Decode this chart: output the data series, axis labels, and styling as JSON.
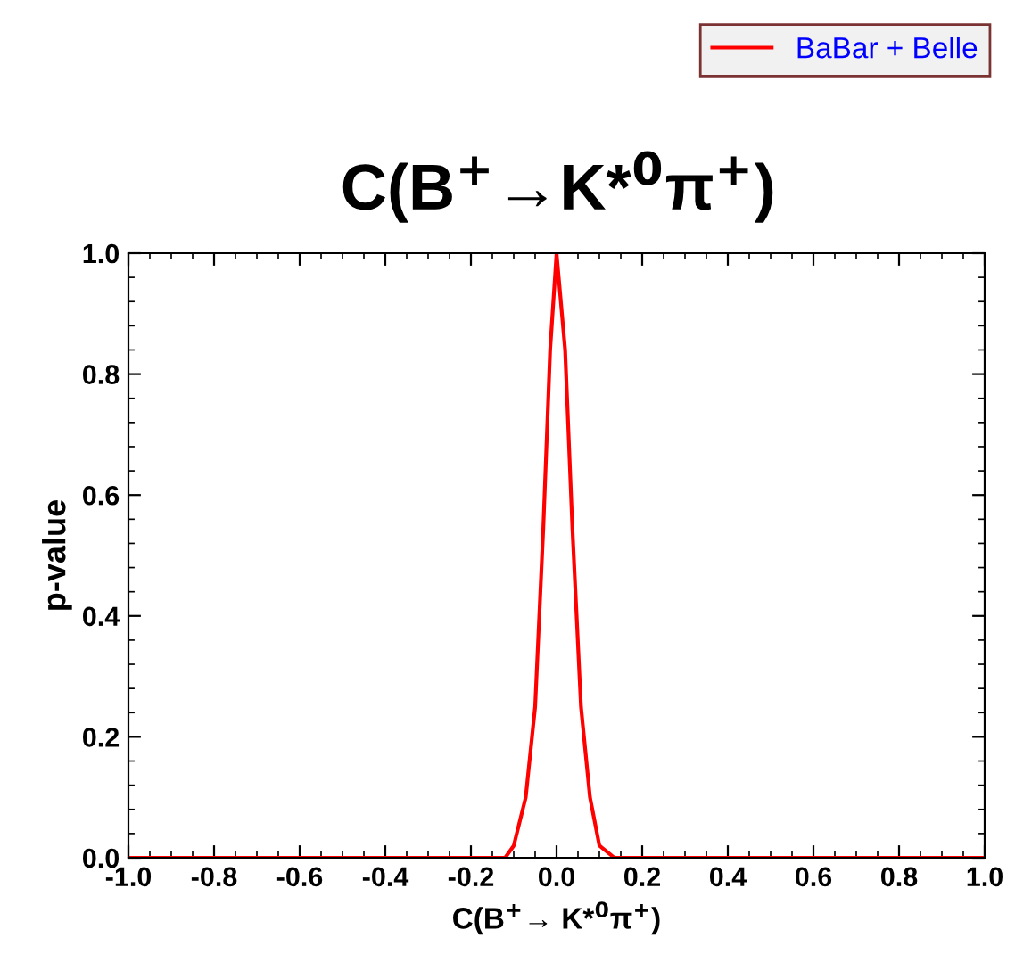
{
  "chart_data": {
    "type": "line",
    "title": "C(B$^{+}$→K*$^{0}$π$^{+}$)",
    "xlabel": "C(B$^{+}$→ K*$^{0}$π$^{+}$)",
    "ylabel": "p-value",
    "xlim": [
      -1.0,
      1.0
    ],
    "ylim": [
      0.0,
      1.0
    ],
    "xticks": [
      {
        "value": -1.0,
        "label": "-1.0"
      },
      {
        "value": -0.8,
        "label": "-0.8"
      },
      {
        "value": -0.6,
        "label": "-0.6"
      },
      {
        "value": -0.4,
        "label": "-0.4"
      },
      {
        "value": -0.2,
        "label": "-0.2"
      },
      {
        "value": 0,
        "label": "0.0"
      },
      {
        "value": 0.2,
        "label": "0.2"
      },
      {
        "value": 0.4,
        "label": "0.4"
      },
      {
        "value": 0.6,
        "label": "0.6"
      },
      {
        "value": 0.8,
        "label": "0.8"
      },
      {
        "value": 1.0,
        "label": "1.0"
      }
    ],
    "yticks": [
      {
        "value": 0,
        "label": "0.0"
      },
      {
        "value": 0.2,
        "label": "0.2"
      },
      {
        "value": 0.4,
        "label": "0.4"
      },
      {
        "value": 0.6,
        "label": "0.6"
      },
      {
        "value": 0.8,
        "label": "0.8"
      },
      {
        "value": 1.0,
        "label": "1.0"
      }
    ],
    "grid": false,
    "legend": "top right",
    "marker": "none",
    "line_style": "solid",
    "series": [
      {
        "name": "BaBar + Belle",
        "color": "#ff0000",
        "x": [
          -1.0,
          -0.2,
          -0.12,
          -0.1,
          -0.072,
          -0.05,
          -0.031,
          -0.015,
          0.0,
          0.02,
          0.037,
          0.057,
          0.078,
          0.1,
          0.135,
          0.2,
          1.0
        ],
        "values": [
          0,
          0,
          0,
          0.02,
          0.1,
          0.25,
          0.545,
          0.84,
          1.0,
          0.84,
          0.545,
          0.25,
          0.1,
          0.02,
          0,
          0,
          0
        ]
      }
    ]
  }
}
